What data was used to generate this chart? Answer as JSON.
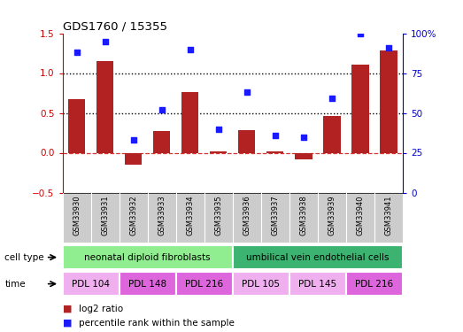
{
  "title": "GDS1760 / 15355",
  "samples": [
    "GSM33930",
    "GSM33931",
    "GSM33932",
    "GSM33933",
    "GSM33934",
    "GSM33935",
    "GSM33936",
    "GSM33937",
    "GSM33938",
    "GSM33939",
    "GSM33940",
    "GSM33941"
  ],
  "log2_ratio": [
    0.67,
    1.15,
    -0.15,
    0.27,
    0.76,
    0.02,
    0.28,
    0.02,
    -0.08,
    0.46,
    1.1,
    1.28
  ],
  "percentile_rank": [
    88,
    95,
    33,
    52,
    90,
    40,
    63,
    36,
    35,
    59,
    100,
    91
  ],
  "bar_color": "#b22222",
  "dot_color": "#1a1aff",
  "ylim_left": [
    -0.5,
    1.5
  ],
  "ylim_right": [
    0,
    100
  ],
  "yticks_left": [
    -0.5,
    0,
    0.5,
    1.0,
    1.5
  ],
  "yticks_right": [
    0,
    25,
    50,
    75,
    100
  ],
  "hline_y": [
    0.5,
    1.0
  ],
  "zero_line_y": 0,
  "cell_type_groups": [
    {
      "label": "neonatal diploid fibroblasts",
      "start": 0,
      "end": 6,
      "color": "#90ee90"
    },
    {
      "label": "umbilical vein endothelial cells",
      "start": 6,
      "end": 12,
      "color": "#3cb371"
    }
  ],
  "time_groups": [
    {
      "label": "PDL 104",
      "start": 0,
      "end": 2,
      "color": "#f0b0f0"
    },
    {
      "label": "PDL 148",
      "start": 2,
      "end": 4,
      "color": "#dd66dd"
    },
    {
      "label": "PDL 216",
      "start": 4,
      "end": 6,
      "color": "#dd66dd"
    },
    {
      "label": "PDL 105",
      "start": 6,
      "end": 8,
      "color": "#f0b0f0"
    },
    {
      "label": "PDL 145",
      "start": 8,
      "end": 10,
      "color": "#f0b0f0"
    },
    {
      "label": "PDL 216",
      "start": 10,
      "end": 12,
      "color": "#dd66dd"
    }
  ],
  "cell_type_label": "cell type",
  "time_label": "time",
  "legend_log2": "log2 ratio",
  "legend_pct": "percentile rank within the sample",
  "background_color": "#ffffff"
}
